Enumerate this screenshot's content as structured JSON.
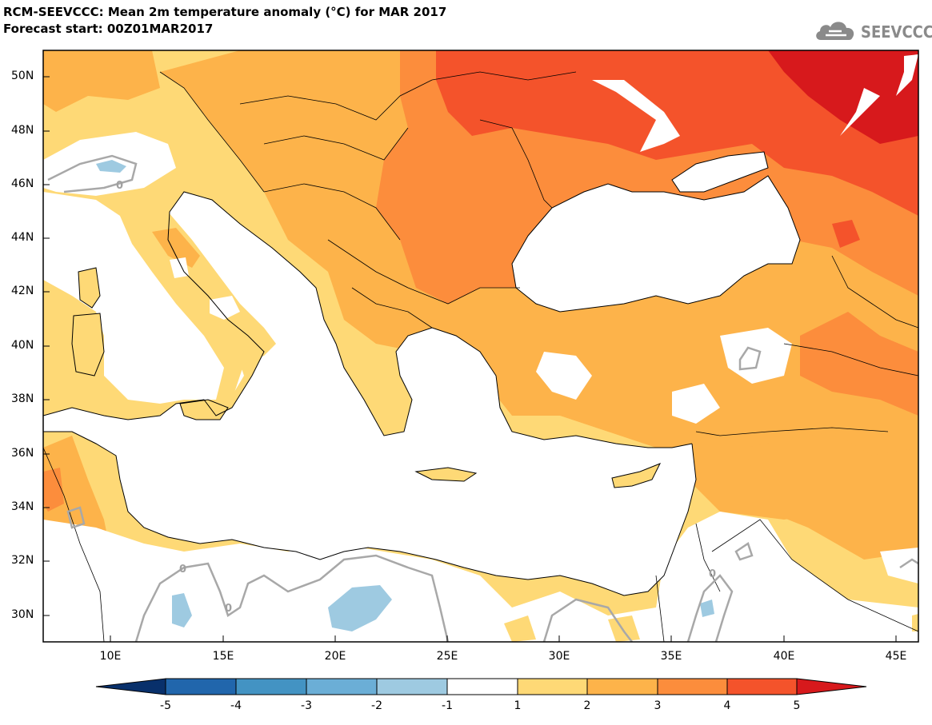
{
  "title": {
    "line1": "RCM-SEEVCCC: Mean 2m temperature anomaly (°C) for MAR 2017",
    "line2": "Forecast start: 00Z01MAR2017"
  },
  "logo": {
    "text": "SEEVCCC",
    "icon": "cloud-icon"
  },
  "map": {
    "lon_range": [
      7,
      46
    ],
    "lat_range": [
      29,
      51
    ],
    "lat_labels": [
      "50N",
      "48N",
      "46N",
      "44N",
      "42N",
      "40N",
      "38N",
      "36N",
      "34N",
      "32N",
      "30N"
    ],
    "lon_labels": [
      "10E",
      "15E",
      "20E",
      "25E",
      "30E",
      "35E",
      "40E",
      "45E"
    ],
    "contour_labels": [
      "0",
      "0",
      "0",
      "0"
    ]
  },
  "colorbar": {
    "labels": [
      "-5",
      "-4",
      "-3",
      "-2",
      "-1",
      "1",
      "2",
      "3",
      "4",
      "5"
    ],
    "colors": [
      "#08306b",
      "#2166ac",
      "#4393c3",
      "#6baed6",
      "#9ecae1",
      "#ffffff",
      "#fed976",
      "#fdb34a",
      "#fc8d3c",
      "#f4532b",
      "#d7191c"
    ]
  },
  "legend_colors": {
    "ocean": "#ffffff",
    "anom_0_1": "#ffffff",
    "anom_1_2": "#fed976",
    "anom_2_3": "#fdb34a",
    "anom_3_4": "#fc8d3c",
    "anom_4_5": "#f4532b",
    "anom_5p": "#d7191c",
    "anom_neg": "#9ecae1"
  }
}
